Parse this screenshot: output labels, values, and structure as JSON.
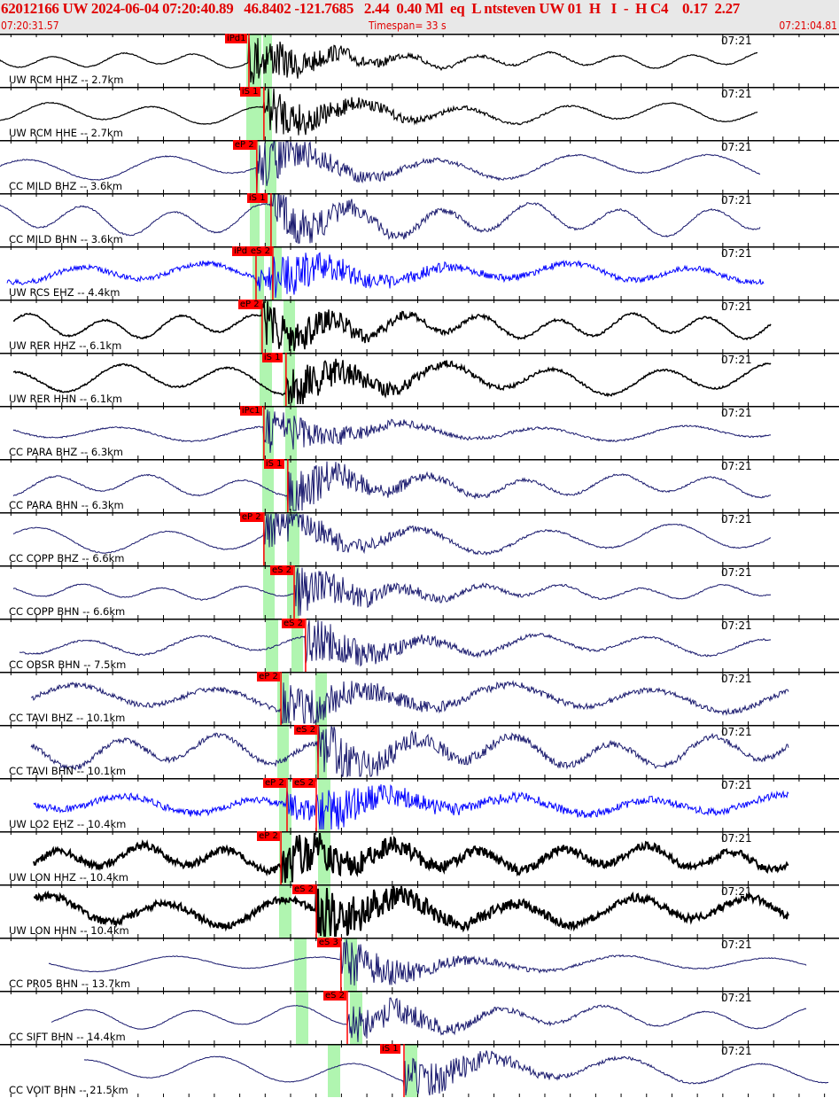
{
  "header": {
    "title": "62012166 UW 2024-06-04 07:20:40.89   46.8402 -121.7685   2.44  0.40 Ml  eq  L ntsteven UW 01  H   I  -  H C4    0.17  2.27",
    "start_time": "07:20:31.57",
    "timespan": "Timespan=  33 s",
    "end_time": "07:21:04.81"
  },
  "minute_label": "07:21",
  "colors": {
    "header_text": "#e00000",
    "pick": "#ff0000",
    "window": "#b0f5b0",
    "black": "#000000",
    "navy": "#1a1a6e",
    "blue": "#0000ff"
  },
  "channels": [
    {
      "label": "UW RCM HHZ -- 2.7km",
      "color": "#000000",
      "picks": [
        {
          "label": "iPd1",
          "time": "07:20:41.36"
        }
      ]
    },
    {
      "label": "UW RCM HHE -- 2.7km",
      "color": "#000000",
      "picks": [
        {
          "label": "iS 1",
          "time": "07:20:41.95"
        }
      ]
    },
    {
      "label": "CC MILD BHZ -- 3.6km",
      "color": "#1a1a6e",
      "picks": [
        {
          "label": "eP 2",
          "time": "07:20:41.67"
        }
      ]
    },
    {
      "label": "CC MILD BHN -- 3.6km",
      "color": "#1a1a6e",
      "picks": [
        {
          "label": "iS 1",
          "time": "07:20:42.23"
        }
      ]
    },
    {
      "label": "UW RCS EHZ -- 4.4km",
      "color": "#0000ff",
      "picks": [
        {
          "label": "iPd",
          "time": "07:20:41.64"
        },
        {
          "label": "eS 2",
          "time": "07:20:42.30"
        }
      ]
    },
    {
      "label": "UW RER HHZ -- 6.1km",
      "color": "#000000",
      "picks": [
        {
          "label": "eP 2",
          "time": "07:20:41.88"
        }
      ]
    },
    {
      "label": "UW RER HHN -- 6.1km",
      "color": "#000000",
      "picks": [
        {
          "label": "iS 1",
          "time": "07:20:42.82"
        }
      ]
    },
    {
      "label": "CC PARA BHZ -- 6.3km",
      "color": "#1a1a6e",
      "picks": [
        {
          "label": "iPc1",
          "time": "07:20:41.95"
        }
      ]
    },
    {
      "label": "CC PARA BHN -- 6.3km",
      "color": "#1a1a6e",
      "picks": [
        {
          "label": "iS 1",
          "time": "07:20:42.89"
        }
      ]
    },
    {
      "label": "CC COPP BHZ -- 6.6km",
      "color": "#1a1a6e",
      "picks": [
        {
          "label": "eP 2",
          "time": "07:20:41.95"
        }
      ]
    },
    {
      "label": "CC COPP BHN -- 6.6km",
      "color": "#1a1a6e",
      "picks": [
        {
          "label": "eS 2",
          "time": "07:20:43.14"
        }
      ]
    },
    {
      "label": "CC OBSR BHN -- 7.5km",
      "color": "#1a1a6e",
      "picks": [
        {
          "label": "eS 2",
          "time": "07:20:43.59"
        }
      ]
    },
    {
      "label": "CC TAVI BHZ -- 10.1km",
      "color": "#1a1a6e",
      "picks": [
        {
          "label": "eP 2",
          "time": "07:20:42.62"
        }
      ]
    },
    {
      "label": "CC TAVI BHN -- 10.1km",
      "color": "#1a1a6e",
      "picks": [
        {
          "label": "eS 2",
          "time": "07:20:44.08"
        }
      ]
    },
    {
      "label": "UW LO2 EHZ -- 10.4km",
      "color": "#0000ff",
      "picks": [
        {
          "label": "eP 2",
          "time": "07:20:42.86"
        },
        {
          "label": "eS 2",
          "time": "07:20:44.01"
        }
      ]
    },
    {
      "label": "UW LON HHZ -- 10.4km",
      "color": "#000000",
      "picks": [
        {
          "label": "eP 2",
          "time": "07:20:42.62"
        }
      ]
    },
    {
      "label": "UW LON HHN -- 10.4km",
      "color": "#000000",
      "picks": [
        {
          "label": "eS 2",
          "time": "07:20:44.01"
        }
      ]
    },
    {
      "label": "CC PR05 BHN -- 13.7km",
      "color": "#1a1a6e",
      "picks": [
        {
          "label": "eS 3",
          "time": "07:20:44.98"
        }
      ]
    },
    {
      "label": "CC SIFT BHN -- 14.4km",
      "color": "#1a1a6e",
      "picks": [
        {
          "label": "eS 2",
          "time": "07:20:45.23"
        }
      ]
    },
    {
      "label": "CC VOIT BHN -- 21.5km",
      "color": "#1a1a6e",
      "picks": [
        {
          "label": "iS 1",
          "time": "07:20:47.46"
        }
      ]
    }
  ]
}
